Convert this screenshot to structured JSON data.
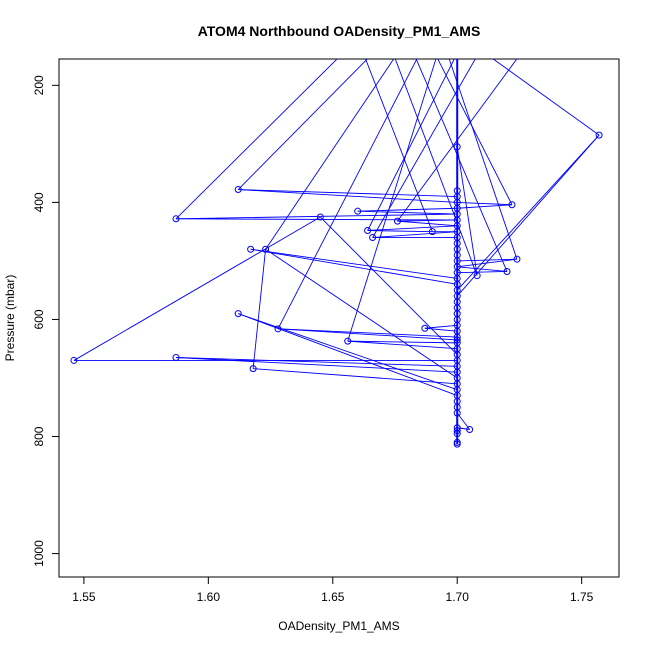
{
  "chart_data": {
    "type": "line",
    "title": "ATOM4 Northbound OADensity_PM1_AMS",
    "xlabel": "OADensity_PM1_AMS",
    "ylabel": "Pressure (mbar)",
    "xlim": [
      1.54,
      1.765
    ],
    "ylim": [
      1040,
      155
    ],
    "y_reversed": true,
    "x_ticks": [
      1.55,
      1.6,
      1.65,
      1.7,
      1.75
    ],
    "x_tick_labels": [
      "1.55",
      "1.60",
      "1.65",
      "1.70",
      "1.75"
    ],
    "y_ticks": [
      200,
      400,
      600,
      800,
      1000
    ],
    "y_tick_labels": [
      "200",
      "400",
      "600",
      "800",
      "1000"
    ],
    "grid": false,
    "legend": "none",
    "series": [
      {
        "color": "#0000ff",
        "marker": "open-circle",
        "points": [
          [
            1.7,
            813
          ],
          [
            1.7,
            810
          ],
          [
            1.7,
            795
          ],
          [
            1.7,
            790
          ],
          [
            1.7,
            785
          ],
          [
            1.705,
            788
          ],
          [
            1.7,
            760
          ],
          [
            1.7,
            750
          ],
          [
            1.7,
            740
          ],
          [
            1.7,
            730
          ],
          [
            1.612,
            590
          ],
          [
            1.7,
            720
          ],
          [
            1.7,
            710
          ],
          [
            1.618,
            684
          ],
          [
            1.623,
            480
          ],
          [
            1.7,
            700
          ],
          [
            1.7,
            690
          ],
          [
            1.587,
            665
          ],
          [
            1.7,
            680
          ],
          [
            1.7,
            670
          ],
          [
            1.546,
            670
          ],
          [
            1.645,
            425
          ],
          [
            1.7,
            660
          ],
          [
            1.7,
            650
          ],
          [
            1.656,
            637
          ],
          [
            1.7,
            640
          ],
          [
            1.7,
            635
          ],
          [
            1.628,
            616
          ],
          [
            1.7,
            630
          ],
          [
            1.7,
            620
          ],
          [
            1.687,
            615
          ],
          [
            1.7,
            610
          ],
          [
            1.7,
            600
          ],
          [
            1.7,
            590
          ],
          [
            1.7,
            580
          ],
          [
            1.7,
            570
          ],
          [
            1.7,
            560
          ],
          [
            1.757,
            285
          ],
          [
            1.7,
            550
          ],
          [
            1.7,
            540
          ],
          [
            1.617,
            480
          ],
          [
            1.7,
            530
          ],
          [
            1.7,
            520
          ],
          [
            1.72,
            518
          ],
          [
            1.7,
            510
          ],
          [
            1.724,
            497
          ],
          [
            1.7,
            500
          ],
          [
            1.7,
            490
          ],
          [
            1.7,
            480
          ],
          [
            1.7,
            470
          ],
          [
            1.7,
            460
          ],
          [
            1.666,
            460
          ],
          [
            1.7,
            450
          ],
          [
            1.69,
            450
          ],
          [
            1.664,
            448
          ],
          [
            1.7,
            440
          ],
          [
            1.676,
            432
          ],
          [
            1.7,
            430
          ],
          [
            1.587,
            428
          ],
          [
            1.7,
            420
          ],
          [
            1.66,
            415
          ],
          [
            1.7,
            410
          ],
          [
            1.722,
            404
          ],
          [
            1.7,
            400
          ],
          [
            1.612,
            378
          ],
          [
            1.7,
            390
          ],
          [
            1.7,
            380
          ],
          [
            1.7,
            305
          ],
          [
            1.708,
            525
          ]
        ]
      }
    ]
  }
}
